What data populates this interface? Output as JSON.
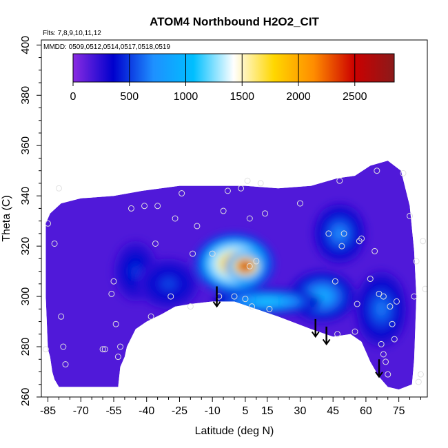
{
  "chart_data": {
    "type": "heatmap",
    "title": "ATOM4 Northbound H2O2_CIT",
    "subtitle_flights": "Flts: 7,8,9,10,11,12",
    "subtitle_dates": "MMDD: 0509,0512,0514,0517,0518,0519",
    "xlabel": "Latitude (deg N)",
    "ylabel": "Theta (C)",
    "xlim": [
      -88,
      88
    ],
    "ylim": [
      260,
      402
    ],
    "x_ticks": [
      -85,
      -70,
      -55,
      -40,
      -25,
      -10,
      5,
      15,
      30,
      45,
      60,
      75
    ],
    "y_ticks": [
      260,
      280,
      300,
      320,
      340,
      360,
      380,
      400
    ],
    "colorbar": {
      "min": 0,
      "max": 2850,
      "ticks": [
        0,
        500,
        1000,
        1500,
        2000,
        2500
      ],
      "colors": [
        "#8a2be2",
        "#0000cd",
        "#1e90ff",
        "#00bfff",
        "#ffffff",
        "#ffd700",
        "#ff8c00",
        "#cc0000",
        "#8b1a1a"
      ]
    },
    "field_outline": [
      [
        -86,
        329
      ],
      [
        -84,
        333
      ],
      [
        -79,
        337
      ],
      [
        -70,
        339
      ],
      [
        -55,
        340
      ],
      [
        -42,
        342
      ],
      [
        -25,
        344
      ],
      [
        -10,
        344
      ],
      [
        5,
        344
      ],
      [
        20,
        343
      ],
      [
        35,
        344
      ],
      [
        47,
        347
      ],
      [
        55,
        348
      ],
      [
        62,
        352
      ],
      [
        70,
        354
      ],
      [
        76,
        350
      ],
      [
        80,
        336
      ],
      [
        82,
        318
      ],
      [
        83,
        300
      ],
      [
        82,
        275
      ],
      [
        81,
        265
      ],
      [
        75,
        263
      ],
      [
        70,
        264
      ],
      [
        66,
        268
      ],
      [
        62,
        274
      ],
      [
        60,
        278
      ],
      [
        58,
        282
      ],
      [
        53,
        285
      ],
      [
        45,
        284
      ],
      [
        35,
        287
      ],
      [
        20,
        292
      ],
      [
        10,
        295
      ],
      [
        0,
        298
      ],
      [
        -10,
        298
      ],
      [
        -20,
        297
      ],
      [
        -27,
        296
      ],
      [
        -33,
        293
      ],
      [
        -40,
        290
      ],
      [
        -45,
        287
      ],
      [
        -49,
        280
      ],
      [
        -50,
        276
      ],
      [
        -52,
        272
      ],
      [
        -53,
        264
      ],
      [
        -60,
        264
      ],
      [
        -70,
        264
      ],
      [
        -80,
        264
      ],
      [
        -82,
        267
      ],
      [
        -83,
        270
      ],
      [
        -84,
        276
      ],
      [
        -85,
        279
      ],
      [
        -86,
        300
      ],
      [
        -86,
        320
      ]
    ],
    "background_value": 150,
    "hotspots": [
      {
        "lat": 5,
        "theta": 312,
        "value": 2800,
        "radius_lat": 9,
        "radius_theta": 6
      },
      {
        "lat": 0,
        "theta": 313,
        "value": 2100,
        "radius_lat": 18,
        "radius_theta": 12
      },
      {
        "lat": 15,
        "theta": 298,
        "value": 1100,
        "radius_lat": 25,
        "radius_theta": 5
      },
      {
        "lat": 40,
        "theta": 300,
        "value": 900,
        "radius_lat": 15,
        "radius_theta": 10
      },
      {
        "lat": 67,
        "theta": 295,
        "value": 650,
        "radius_lat": 12,
        "radius_theta": 15
      },
      {
        "lat": -30,
        "theta": 305,
        "value": 520,
        "radius_lat": 14,
        "radius_theta": 10
      },
      {
        "lat": -45,
        "theta": 310,
        "value": 480,
        "radius_lat": 10,
        "radius_theta": 12
      },
      {
        "lat": 48,
        "theta": 325,
        "value": 700,
        "radius_lat": 12,
        "radius_theta": 12
      }
    ],
    "sample_points": [
      [
        -86,
        279
      ],
      [
        -85,
        329
      ],
      [
        -82,
        321
      ],
      [
        -80,
        343
      ],
      [
        -79,
        292
      ],
      [
        -78,
        280
      ],
      [
        -77,
        273
      ],
      [
        -60,
        279
      ],
      [
        -59,
        279
      ],
      [
        -56,
        301
      ],
      [
        -55,
        306
      ],
      [
        -54,
        289
      ],
      [
        -53,
        276
      ],
      [
        -52,
        280
      ],
      [
        -47,
        335
      ],
      [
        -41,
        336
      ],
      [
        -38,
        292
      ],
      [
        -36,
        321
      ],
      [
        -35,
        336
      ],
      [
        -29,
        300
      ],
      [
        -27,
        331
      ],
      [
        -24,
        341
      ],
      [
        -20,
        296
      ],
      [
        -19,
        317
      ],
      [
        -17,
        328
      ],
      [
        -10,
        317
      ],
      [
        -7,
        300
      ],
      [
        -5,
        334
      ],
      [
        -3,
        342
      ],
      [
        0,
        300
      ],
      [
        3,
        343
      ],
      [
        5,
        299
      ],
      [
        6,
        346
      ],
      [
        7,
        312
      ],
      [
        7,
        331
      ],
      [
        8,
        296
      ],
      [
        10,
        314
      ],
      [
        12,
        345
      ],
      [
        14,
        333
      ],
      [
        16,
        295
      ],
      [
        30,
        337
      ],
      [
        43,
        325
      ],
      [
        46,
        306
      ],
      [
        47,
        285
      ],
      [
        48,
        346
      ],
      [
        49,
        320
      ],
      [
        50,
        325
      ],
      [
        55,
        286
      ],
      [
        56,
        297
      ],
      [
        57,
        322
      ],
      [
        58,
        323
      ],
      [
        62,
        307
      ],
      [
        64,
        318
      ],
      [
        65,
        350
      ],
      [
        66,
        301
      ],
      [
        67,
        281
      ],
      [
        68,
        300
      ],
      [
        68,
        277
      ],
      [
        69,
        274
      ],
      [
        70,
        269
      ],
      [
        71,
        296
      ],
      [
        72,
        289
      ],
      [
        73,
        283
      ],
      [
        74,
        298
      ],
      [
        77,
        349
      ],
      [
        80,
        332
      ],
      [
        82,
        300
      ],
      [
        83,
        314
      ],
      [
        84,
        266
      ],
      [
        85,
        269
      ],
      [
        86,
        322
      ],
      [
        87,
        303
      ]
    ],
    "arrows": [
      {
        "lat": -8,
        "theta_top": 304,
        "theta_bottom": 296
      },
      {
        "lat": 37,
        "theta_top": 291,
        "theta_bottom": 284
      },
      {
        "lat": 42,
        "theta_top": 288,
        "theta_bottom": 281
      },
      {
        "lat": 66,
        "theta_top": 275,
        "theta_bottom": 268
      }
    ]
  }
}
